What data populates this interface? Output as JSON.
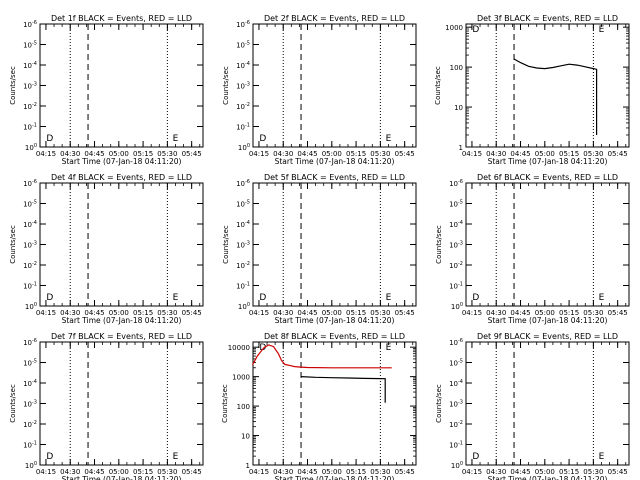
{
  "chart_data": [
    {
      "type": "line",
      "title": "Det 1f BLACK = Events, RED = LLD",
      "xlabel": "Start Time (07-Jan-18 04:11:20)",
      "ylabel": "Counts/sec",
      "x_ticks": [
        "04:15",
        "04:30",
        "04:45",
        "05:00",
        "05:15",
        "05:30",
        "05:45"
      ],
      "y_scale": "log",
      "y_ticks": [
        "10^0",
        "10^-1",
        "10^-2",
        "10^-3",
        "10^-4",
        "10^-5",
        "10^-6"
      ],
      "grid": false,
      "markers": {
        "dotted": [
          "04:30",
          "05:30"
        ],
        "dashed": [
          "04:41"
        ]
      },
      "annotations": [
        {
          "text": "D",
          "x": "04:14"
        },
        {
          "text": "E",
          "x": "05:32"
        }
      ],
      "series": []
    },
    {
      "type": "line",
      "title": "Det 2f BLACK = Events, RED = LLD",
      "xlabel": "Start Time (07-Jan-18 04:11:20)",
      "ylabel": "Counts/sec",
      "x_ticks": [
        "04:15",
        "04:30",
        "04:45",
        "05:00",
        "05:15",
        "05:30",
        "05:45"
      ],
      "y_scale": "log",
      "y_ticks": [
        "10^0",
        "10^-1",
        "10^-2",
        "10^-3",
        "10^-4",
        "10^-5",
        "10^-6"
      ],
      "grid": false,
      "markers": {
        "dotted": [
          "04:30",
          "05:30"
        ],
        "dashed": [
          "04:41"
        ]
      },
      "annotations": [
        {
          "text": "D",
          "x": "04:14"
        },
        {
          "text": "E",
          "x": "05:32"
        }
      ],
      "series": []
    },
    {
      "type": "line",
      "title": "Det 3f BLACK = Events, RED = LLD",
      "xlabel": "Start Time (07-Jan-18 04:11:20)",
      "ylabel": "Counts/sec",
      "x_ticks": [
        "04:15",
        "04:30",
        "04:45",
        "05:00",
        "05:15",
        "05:30",
        "05:45"
      ],
      "y_scale": "log",
      "y_ticks": [
        "1000",
        "100",
        "10",
        "1"
      ],
      "ylim": [
        1,
        1200
      ],
      "grid": false,
      "markers": {
        "dotted": [
          "04:30",
          "05:30"
        ],
        "dashed": [
          "04:41"
        ]
      },
      "annotations": [
        {
          "text": "D",
          "x": "04:14"
        },
        {
          "text": "E",
          "x": "05:32"
        }
      ],
      "series": [
        {
          "color": "#000000",
          "points": [
            [
              "04:41",
              160
            ],
            [
              "04:45",
              130
            ],
            [
              "04:50",
              105
            ],
            [
              "04:55",
              95
            ],
            [
              "05:00",
              92
            ],
            [
              "05:05",
              98
            ],
            [
              "05:10",
              108
            ],
            [
              "05:15",
              118
            ],
            [
              "05:20",
              112
            ],
            [
              "05:25",
              102
            ],
            [
              "05:30",
              92
            ],
            [
              "05:31",
              90
            ],
            [
              "05:32",
              88
            ],
            [
              "05:32",
              2
            ]
          ]
        }
      ]
    },
    {
      "type": "line",
      "title": "Det 4f BLACK = Events, RED = LLD",
      "xlabel": "Start Time (07-Jan-18 04:11:20)",
      "ylabel": "Counts/sec",
      "x_ticks": [
        "04:15",
        "04:30",
        "04:45",
        "05:00",
        "05:15",
        "05:30",
        "05:45"
      ],
      "y_scale": "log",
      "y_ticks": [
        "10^0",
        "10^-1",
        "10^-2",
        "10^-3",
        "10^-4",
        "10^-5",
        "10^-6"
      ],
      "grid": false,
      "markers": {
        "dotted": [
          "04:30",
          "05:30"
        ],
        "dashed": [
          "04:41"
        ]
      },
      "annotations": [
        {
          "text": "D",
          "x": "04:14"
        },
        {
          "text": "E",
          "x": "05:32"
        }
      ],
      "series": []
    },
    {
      "type": "line",
      "title": "Det 5f BLACK = Events, RED = LLD",
      "xlabel": "Start Time (07-Jan-18 04:11:20)",
      "ylabel": "Counts/sec",
      "x_ticks": [
        "04:15",
        "04:30",
        "04:45",
        "05:00",
        "05:15",
        "05:30",
        "05:45"
      ],
      "y_scale": "log",
      "y_ticks": [
        "10^0",
        "10^-1",
        "10^-2",
        "10^-3",
        "10^-4",
        "10^-5",
        "10^-6"
      ],
      "grid": false,
      "markers": {
        "dotted": [
          "04:30",
          "05:30"
        ],
        "dashed": [
          "04:41"
        ]
      },
      "annotations": [
        {
          "text": "D",
          "x": "04:14"
        },
        {
          "text": "E",
          "x": "05:32"
        }
      ],
      "series": []
    },
    {
      "type": "line",
      "title": "Det 6f BLACK = Events, RED = LLD",
      "xlabel": "Start Time (07-Jan-18 04:11:20)",
      "ylabel": "Counts/sec",
      "x_ticks": [
        "04:15",
        "04:30",
        "04:45",
        "05:00",
        "05:15",
        "05:30",
        "05:45"
      ],
      "y_scale": "log",
      "y_ticks": [
        "10^0",
        "10^-1",
        "10^-2",
        "10^-3",
        "10^-4",
        "10^-5",
        "10^-6"
      ],
      "grid": false,
      "markers": {
        "dotted": [
          "04:30",
          "05:30"
        ],
        "dashed": [
          "04:41"
        ]
      },
      "annotations": [
        {
          "text": "D",
          "x": "04:14"
        },
        {
          "text": "E",
          "x": "05:32"
        }
      ],
      "series": []
    },
    {
      "type": "line",
      "title": "Det 7f BLACK = Events, RED = LLD",
      "xlabel": "Start Time (07-Jan-18 04:11:20)",
      "ylabel": "Counts/sec",
      "x_ticks": [
        "04:15",
        "04:30",
        "04:45",
        "05:00",
        "05:15",
        "05:30",
        "05:45"
      ],
      "y_scale": "log",
      "y_ticks": [
        "10^0",
        "10^-1",
        "10^-2",
        "10^-3",
        "10^-4",
        "10^-5",
        "10^-6"
      ],
      "grid": false,
      "markers": {
        "dotted": [
          "04:30",
          "05:30"
        ],
        "dashed": [
          "04:41"
        ]
      },
      "annotations": [
        {
          "text": "D",
          "x": "04:14"
        },
        {
          "text": "E",
          "x": "05:32"
        }
      ],
      "series": []
    },
    {
      "type": "line",
      "title": "Det 8f BLACK = Events, RED = LLD",
      "xlabel": "Start Time (07-Jan-18 04:11:20)",
      "ylabel": "Counts/sec",
      "x_ticks": [
        "04:15",
        "04:30",
        "04:45",
        "05:00",
        "05:15",
        "05:30",
        "05:45"
      ],
      "y_scale": "log",
      "y_ticks": [
        "10000",
        "1000",
        "100",
        "10",
        "1"
      ],
      "ylim": [
        1,
        15000
      ],
      "grid": false,
      "markers": {
        "dotted": [
          "04:30",
          "05:30"
        ],
        "dashed": [
          "04:41"
        ]
      },
      "annotations": [
        {
          "text": "D",
          "x": "04:14"
        },
        {
          "text": "E",
          "x": "05:32"
        }
      ],
      "series": [
        {
          "color": "#cc0000",
          "points": [
            [
              "04:11",
              2500
            ],
            [
              "04:14",
              5000
            ],
            [
              "04:18",
              9500
            ],
            [
              "04:21",
              12000
            ],
            [
              "04:24",
              10500
            ],
            [
              "04:27",
              6000
            ],
            [
              "04:29",
              3500
            ],
            [
              "04:31",
              2600
            ],
            [
              "04:34",
              2400
            ],
            [
              "04:37",
              2200
            ],
            [
              "04:41",
              2100
            ],
            [
              "04:45",
              2050
            ],
            [
              "05:00",
              2000
            ],
            [
              "05:15",
              2000
            ],
            [
              "05:30",
              2000
            ],
            [
              "05:37",
              2000
            ]
          ]
        },
        {
          "color": "#000000",
          "points": [
            [
              "04:41",
              1000
            ],
            [
              "04:50",
              950
            ],
            [
              "05:00",
              920
            ],
            [
              "05:10",
              900
            ],
            [
              "05:20",
              870
            ],
            [
              "05:30",
              860
            ],
            [
              "05:33",
              850
            ],
            [
              "05:33",
              130
            ]
          ]
        }
      ]
    },
    {
      "type": "line",
      "title": "Det 9f BLACK = Events, RED = LLD",
      "xlabel": "Start Time (07-Jan-18 04:11:20)",
      "ylabel": "Counts/sec",
      "x_ticks": [
        "04:15",
        "04:30",
        "04:45",
        "05:00",
        "05:15",
        "05:30",
        "05:45"
      ],
      "y_scale": "log",
      "y_ticks": [
        "10^0",
        "10^-1",
        "10^-2",
        "10^-3",
        "10^-4",
        "10^-5",
        "10^-6"
      ],
      "grid": false,
      "markers": {
        "dotted": [
          "04:30",
          "05:30"
        ],
        "dashed": [
          "04:41"
        ]
      },
      "annotations": [
        {
          "text": "D",
          "x": "04:14"
        },
        {
          "text": "E",
          "x": "05:32"
        }
      ],
      "series": []
    }
  ]
}
